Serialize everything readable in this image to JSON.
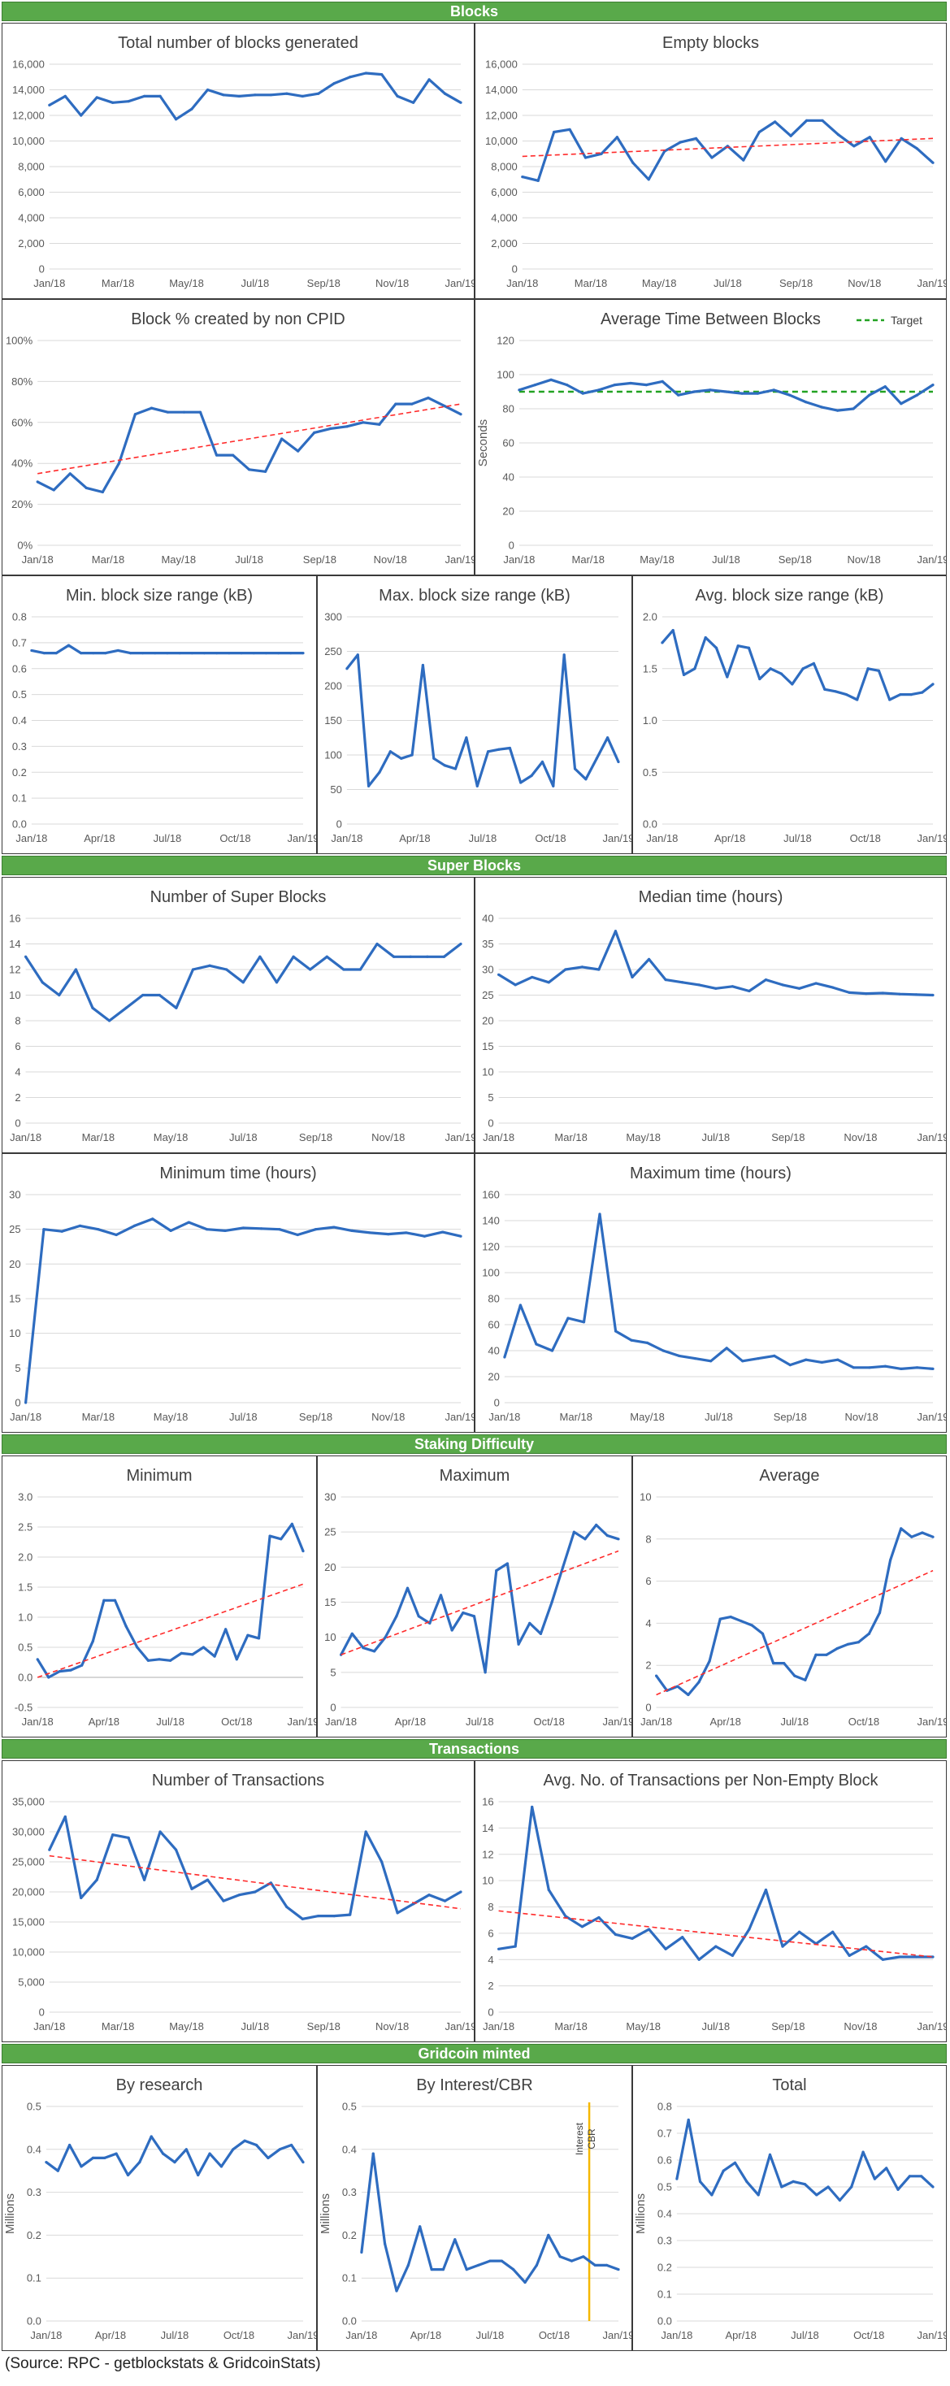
{
  "source_note": "(Source: RPC - getblockstats & GridcoinStats)",
  "sections": [
    {
      "id": "blocks",
      "title": "Blocks"
    },
    {
      "id": "superblocks",
      "title": "Super Blocks"
    },
    {
      "id": "staking",
      "title": "Staking Difficulty"
    },
    {
      "id": "transactions",
      "title": "Transactions"
    },
    {
      "id": "minted",
      "title": "Gridcoin minted"
    }
  ],
  "colors": {
    "series": "#2e6cc0",
    "trend": "#ff2b2b",
    "target": "#22a222",
    "marker": "#f5b800",
    "header": "#59a94a",
    "grid": "#d9d9d9"
  },
  "chart_data": [
    {
      "id": "total-blocks",
      "type": "line",
      "title": "Total number of blocks generated",
      "xticks": [
        "Jan/18",
        "Mar/18",
        "May/18",
        "Jul/18",
        "Sep/18",
        "Nov/18",
        "Jan/19"
      ],
      "ylim": [
        0,
        16000
      ],
      "ystep": 2000,
      "yfmt": "comma",
      "series": [
        {
          "values": [
            12800,
            13500,
            12000,
            13400,
            13000,
            13100,
            13500,
            13500,
            11700,
            12500,
            14000,
            13600,
            13500,
            13600,
            13600,
            13700,
            13500,
            13700,
            14500,
            15000,
            15300,
            15200,
            13500,
            13000,
            14800,
            13700,
            13000
          ]
        }
      ]
    },
    {
      "id": "empty-blocks",
      "type": "line",
      "title": "Empty blocks",
      "xticks": [
        "Jan/18",
        "Mar/18",
        "May/18",
        "Jul/18",
        "Sep/18",
        "Nov/18",
        "Jan/19"
      ],
      "ylim": [
        0,
        16000
      ],
      "ystep": 2000,
      "yfmt": "comma",
      "series": [
        {
          "values": [
            7200,
            6900,
            10700,
            10900,
            8700,
            9000,
            10300,
            8300,
            7000,
            9200,
            9900,
            10200,
            8700,
            9600,
            8500,
            10700,
            11500,
            10400,
            11600,
            11600,
            10500,
            9600,
            10300,
            8400,
            10200,
            9400,
            8300
          ]
        }
      ],
      "trend": [
        8800,
        10200
      ]
    },
    {
      "id": "non-cpid",
      "type": "line",
      "title": "Block % created by non CPID",
      "xticks": [
        "Jan/18",
        "Mar/18",
        "May/18",
        "Jul/18",
        "Sep/18",
        "Nov/18",
        "Jan/19"
      ],
      "ylim": [
        0,
        100
      ],
      "ystep": 20,
      "yfmt": "pct",
      "series": [
        {
          "values": [
            31,
            27,
            35,
            28,
            26,
            40,
            64,
            67,
            65,
            65,
            65,
            44,
            44,
            37,
            36,
            52,
            46,
            55,
            57,
            58,
            60,
            59,
            69,
            69,
            72,
            68,
            64
          ]
        }
      ],
      "trend": [
        35,
        69
      ]
    },
    {
      "id": "avg-time",
      "type": "line",
      "title": "Average Time Between Blocks",
      "ylabel": "Seconds",
      "xticks": [
        "Jan/18",
        "Mar/18",
        "May/18",
        "Jul/18",
        "Sep/18",
        "Nov/18",
        "Jan/19"
      ],
      "ylim": [
        0,
        120
      ],
      "ystep": 20,
      "legend": {
        "label": "Target",
        "position": "top-right"
      },
      "target": 90,
      "series": [
        {
          "values": [
            91,
            94,
            97,
            94,
            89,
            91,
            94,
            95,
            94,
            96,
            88,
            90,
            91,
            90,
            89,
            89,
            91,
            88,
            84,
            81,
            79,
            80,
            88,
            93,
            83,
            88,
            94
          ]
        }
      ]
    },
    {
      "id": "min-block-size",
      "type": "line",
      "title": "Min. block size range (kB)",
      "xticks": [
        "Jan/18",
        "Apr/18",
        "Jul/18",
        "Oct/18",
        "Jan/19"
      ],
      "ylim": [
        0,
        0.8
      ],
      "ystep": 0.1,
      "series": [
        {
          "values": [
            0.67,
            0.66,
            0.66,
            0.69,
            0.66,
            0.66,
            0.66,
            0.67,
            0.66,
            0.66,
            0.66,
            0.66,
            0.66,
            0.66,
            0.66,
            0.66,
            0.66,
            0.66,
            0.66,
            0.66,
            0.66,
            0.66,
            0.66
          ]
        }
      ]
    },
    {
      "id": "max-block-size",
      "type": "line",
      "title": "Max. block size range (kB)",
      "xticks": [
        "Jan/18",
        "Apr/18",
        "Jul/18",
        "Oct/18",
        "Jan/19"
      ],
      "ylim": [
        0,
        300
      ],
      "ystep": 50,
      "series": [
        {
          "values": [
            225,
            245,
            55,
            75,
            105,
            95,
            100,
            230,
            95,
            85,
            80,
            125,
            55,
            105,
            108,
            110,
            60,
            70,
            90,
            55,
            245,
            80,
            65,
            95,
            125,
            90
          ]
        }
      ]
    },
    {
      "id": "avg-block-size",
      "type": "line",
      "title": "Avg. block size range (kB)",
      "xticks": [
        "Jan/18",
        "Apr/18",
        "Jul/18",
        "Oct/18",
        "Jan/19"
      ],
      "ylim": [
        0,
        2.0
      ],
      "ystep": 0.5,
      "series": [
        {
          "values": [
            1.75,
            1.87,
            1.44,
            1.5,
            1.8,
            1.7,
            1.42,
            1.72,
            1.7,
            1.4,
            1.5,
            1.45,
            1.35,
            1.5,
            1.55,
            1.3,
            1.28,
            1.25,
            1.2,
            1.5,
            1.48,
            1.2,
            1.25,
            1.25,
            1.27,
            1.35
          ]
        }
      ]
    },
    {
      "id": "super-count",
      "type": "line",
      "title": "Number of Super Blocks",
      "xticks": [
        "Jan/18",
        "Mar/18",
        "May/18",
        "Jul/18",
        "Sep/18",
        "Nov/18",
        "Jan/19"
      ],
      "ylim": [
        0,
        16
      ],
      "ystep": 2,
      "series": [
        {
          "values": [
            13,
            11,
            10,
            12,
            9,
            8,
            9,
            10,
            10,
            9,
            12,
            12.3,
            12,
            11,
            13,
            11,
            13,
            12,
            13,
            12,
            12,
            14,
            13,
            13,
            13,
            13,
            14
          ]
        }
      ]
    },
    {
      "id": "median-time",
      "type": "line",
      "title": "Median time (hours)",
      "xticks": [
        "Jan/18",
        "Mar/18",
        "May/18",
        "Jul/18",
        "Sep/18",
        "Nov/18",
        "Jan/19"
      ],
      "ylim": [
        0,
        40
      ],
      "ystep": 5,
      "series": [
        {
          "values": [
            29,
            27,
            28.5,
            27.5,
            30,
            30.5,
            30,
            37.5,
            28.5,
            32,
            28,
            27.5,
            27,
            26.3,
            26.7,
            25.8,
            28,
            27,
            26.3,
            27.3,
            26.5,
            25.5,
            25.3,
            25.4,
            25.2,
            25.1,
            25
          ]
        }
      ]
    },
    {
      "id": "min-time",
      "type": "line",
      "title": "Minimum time (hours)",
      "xticks": [
        "Jan/18",
        "Mar/18",
        "May/18",
        "Jul/18",
        "Sep/18",
        "Nov/18",
        "Jan/19"
      ],
      "ylim": [
        0,
        30
      ],
      "ystep": 5,
      "series": [
        {
          "values": [
            0,
            25,
            24.7,
            25.5,
            25,
            24.2,
            25.5,
            26.5,
            24.8,
            26,
            25,
            24.8,
            25.2,
            25.1,
            25,
            24.2,
            25,
            25.3,
            24.8,
            24.5,
            24.3,
            24.5,
            24,
            24.6,
            24
          ]
        }
      ]
    },
    {
      "id": "max-time",
      "type": "line",
      "title": "Maximum time (hours)",
      "xticks": [
        "Jan/18",
        "Mar/18",
        "May/18",
        "Jul/18",
        "Sep/18",
        "Nov/18",
        "Jan/19"
      ],
      "ylim": [
        0,
        160
      ],
      "ystep": 20,
      "series": [
        {
          "values": [
            35,
            75,
            45,
            40,
            65,
            62,
            145,
            55,
            48,
            46,
            40,
            36,
            34,
            32,
            42,
            32,
            34,
            36,
            29,
            33,
            31,
            33,
            27,
            27,
            28,
            26,
            27,
            26
          ]
        }
      ]
    },
    {
      "id": "diff-min",
      "type": "line",
      "title": "Minimum",
      "xticks": [
        "Jan/18",
        "Apr/18",
        "Jul/18",
        "Oct/18",
        "Jan/19"
      ],
      "ylim": [
        -0.5,
        3.0
      ],
      "ystep": 0.5,
      "series": [
        {
          "values": [
            0.3,
            0.0,
            0.1,
            0.12,
            0.2,
            0.6,
            1.28,
            1.28,
            0.85,
            0.5,
            0.28,
            0.3,
            0.28,
            0.4,
            0.38,
            0.5,
            0.35,
            0.8,
            0.3,
            0.7,
            0.65,
            2.35,
            2.3,
            2.55,
            2.1
          ]
        }
      ],
      "trend": [
        0.0,
        1.55
      ]
    },
    {
      "id": "diff-max",
      "type": "line",
      "title": "Maximum",
      "xticks": [
        "Jan/18",
        "Apr/18",
        "Jul/18",
        "Oct/18",
        "Jan/19"
      ],
      "ylim": [
        0,
        30
      ],
      "ystep": 5,
      "series": [
        {
          "values": [
            7.5,
            10.5,
            8.5,
            8,
            10,
            13,
            17,
            13,
            12,
            16,
            11,
            13.5,
            13,
            5,
            19.5,
            20.5,
            9,
            12,
            10.5,
            15,
            20,
            25,
            24,
            26,
            24.5,
            24
          ]
        }
      ],
      "trend": [
        7.5,
        22.3
      ]
    },
    {
      "id": "diff-avg",
      "type": "line",
      "title": "Average",
      "xticks": [
        "Jan/18",
        "Apr/18",
        "Jul/18",
        "Oct/18",
        "Jan/19"
      ],
      "ylim": [
        0,
        10
      ],
      "ystep": 2,
      "series": [
        {
          "values": [
            1.5,
            0.8,
            1.0,
            0.6,
            1.2,
            2.2,
            4.2,
            4.3,
            4.1,
            3.9,
            3.5,
            2.1,
            2.1,
            1.5,
            1.3,
            2.5,
            2.5,
            2.8,
            3.0,
            3.1,
            3.5,
            4.5,
            7.0,
            8.5,
            8.1,
            8.3,
            8.1
          ]
        }
      ],
      "trend": [
        0.6,
        6.5
      ]
    },
    {
      "id": "tx-count",
      "type": "line",
      "title": "Number of Transactions",
      "xticks": [
        "Jan/18",
        "Mar/18",
        "May/18",
        "Jul/18",
        "Sep/18",
        "Nov/18",
        "Jan/19"
      ],
      "ylim": [
        0,
        35000
      ],
      "ystep": 5000,
      "yfmt": "comma",
      "series": [
        {
          "values": [
            27000,
            32500,
            19000,
            22000,
            29500,
            29000,
            22000,
            30000,
            27000,
            20500,
            22000,
            18500,
            19500,
            20000,
            21500,
            17500,
            15500,
            16000,
            16000,
            16200,
            30000,
            25000,
            16500,
            18000,
            19500,
            18500,
            20000
          ]
        }
      ],
      "trend": [
        26000,
        17200
      ]
    },
    {
      "id": "tx-per-block",
      "type": "line",
      "title": "Avg. No. of Transactions per Non-Empty Block",
      "xticks": [
        "Jan/18",
        "Mar/18",
        "May/18",
        "Jul/18",
        "Sep/18",
        "Nov/18",
        "Jan/19"
      ],
      "ylim": [
        0,
        16
      ],
      "ystep": 2,
      "series": [
        {
          "values": [
            4.8,
            5.0,
            15.6,
            9.3,
            7.3,
            6.5,
            7.2,
            5.9,
            5.6,
            6.3,
            4.8,
            5.7,
            4.0,
            5.0,
            4.3,
            6.3,
            9.3,
            5.0,
            6.1,
            5.2,
            6.1,
            4.3,
            5.0,
            4.0,
            4.2,
            4.2,
            4.2
          ]
        }
      ],
      "trend": [
        7.7,
        4.2
      ]
    },
    {
      "id": "minted-research",
      "type": "line",
      "title": "By research",
      "ylabel": "Millions",
      "xticks": [
        "Jan/18",
        "Apr/18",
        "Jul/18",
        "Oct/18",
        "Jan/19"
      ],
      "ylim": [
        0,
        0.5
      ],
      "ystep": 0.1,
      "series": [
        {
          "values": [
            0.37,
            0.35,
            0.41,
            0.36,
            0.38,
            0.38,
            0.39,
            0.34,
            0.37,
            0.43,
            0.39,
            0.37,
            0.4,
            0.34,
            0.39,
            0.36,
            0.4,
            0.42,
            0.41,
            0.38,
            0.4,
            0.41,
            0.37
          ]
        }
      ]
    },
    {
      "id": "minted-interest",
      "type": "line",
      "title": "By Interest/CBR",
      "ylabel": "Millions",
      "xticks": [
        "Jan/18",
        "Apr/18",
        "Jul/18",
        "Oct/18",
        "Jan/19"
      ],
      "ylim": [
        0,
        0.5
      ],
      "ystep": 0.1,
      "marker": {
        "index": 19.5,
        "labels": [
          "Interest",
          "CBR"
        ]
      },
      "series": [
        {
          "values": [
            0.16,
            0.39,
            0.18,
            0.07,
            0.13,
            0.22,
            0.12,
            0.12,
            0.19,
            0.12,
            0.13,
            0.14,
            0.14,
            0.12,
            0.09,
            0.13,
            0.2,
            0.15,
            0.14,
            0.15,
            0.13,
            0.13,
            0.12
          ]
        }
      ]
    },
    {
      "id": "minted-total",
      "type": "line",
      "title": "Total",
      "ylabel": "Millions",
      "xticks": [
        "Jan/18",
        "Apr/18",
        "Jul/18",
        "Oct/18",
        "Jan/19"
      ],
      "ylim": [
        0,
        0.8
      ],
      "ystep": 0.1,
      "series": [
        {
          "values": [
            0.53,
            0.75,
            0.52,
            0.47,
            0.56,
            0.59,
            0.52,
            0.47,
            0.62,
            0.5,
            0.52,
            0.51,
            0.47,
            0.5,
            0.45,
            0.5,
            0.63,
            0.53,
            0.57,
            0.49,
            0.54,
            0.54,
            0.5
          ]
        }
      ]
    }
  ]
}
